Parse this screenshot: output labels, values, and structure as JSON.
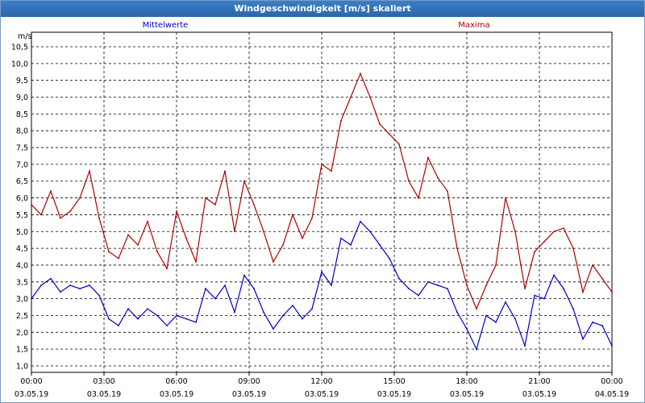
{
  "window": {
    "title": "Windgeschwindigkeit [m/s] skaliert"
  },
  "colors": {
    "mean": "#0000cc",
    "max": "#b00000",
    "grid": "#000000",
    "titlebar": "#2f6db0"
  },
  "chart_data": {
    "type": "line",
    "title": "Windgeschwindigkeit [m/s] skaliert",
    "ylabel": "m/s",
    "ylim": [
      0.8,
      10.7
    ],
    "yticks": [
      "10,5",
      "10,0",
      "9,5",
      "9,0",
      "8,5",
      "8,0",
      "7,5",
      "7,0",
      "6,5",
      "6,0",
      "5,5",
      "5,0",
      "4,5",
      "4,0",
      "3,5",
      "3,0",
      "2,5",
      "2,0",
      "1,5",
      "1,0"
    ],
    "xlim": [
      0,
      24
    ],
    "xticks": [
      {
        "time": "00:00",
        "date": "03.05.19"
      },
      {
        "time": "03:00",
        "date": "03.05.19"
      },
      {
        "time": "06:00",
        "date": "03.05.19"
      },
      {
        "time": "09:00",
        "date": "03.05.19"
      },
      {
        "time": "12:00",
        "date": "03.05.19"
      },
      {
        "time": "15:00",
        "date": "03.05.19"
      },
      {
        "time": "18:00",
        "date": "03.05.19"
      },
      {
        "time": "21:00",
        "date": "03.05.19"
      },
      {
        "time": "00:00",
        "date": "04.05.19"
      }
    ],
    "grid": true,
    "legend_position": "top",
    "x": [
      0,
      0.4,
      0.8,
      1.2,
      1.6,
      2.0,
      2.4,
      2.8,
      3.2,
      3.6,
      4.0,
      4.4,
      4.8,
      5.2,
      5.6,
      6.0,
      6.4,
      6.8,
      7.2,
      7.6,
      8.0,
      8.4,
      8.8,
      9.2,
      9.6,
      10.0,
      10.4,
      10.8,
      11.2,
      11.6,
      12.0,
      12.4,
      12.8,
      13.2,
      13.6,
      14.0,
      14.4,
      14.8,
      15.2,
      15.6,
      16.0,
      16.4,
      16.8,
      17.2,
      17.6,
      18.0,
      18.4,
      18.8,
      19.2,
      19.6,
      20.0,
      20.4,
      20.8,
      21.2,
      21.6,
      22.0,
      22.4,
      22.8,
      23.2,
      23.6,
      24.0
    ],
    "series": [
      {
        "name": "Mittelwerte",
        "color": "#0000cc",
        "values": [
          3.0,
          3.4,
          3.6,
          3.2,
          3.4,
          3.3,
          3.4,
          3.1,
          2.4,
          2.2,
          2.7,
          2.4,
          2.7,
          2.5,
          2.2,
          2.5,
          2.4,
          2.3,
          3.3,
          3.0,
          3.4,
          2.6,
          3.7,
          3.3,
          2.6,
          2.1,
          2.5,
          2.8,
          2.4,
          2.7,
          3.8,
          3.4,
          4.8,
          4.6,
          5.3,
          5.0,
          4.6,
          4.2,
          3.6,
          3.3,
          3.1,
          3.5,
          3.4,
          3.3,
          2.6,
          2.1,
          1.5,
          2.5,
          2.3,
          2.9,
          2.4,
          1.6,
          3.1,
          3.0,
          3.7,
          3.3,
          2.7,
          1.8,
          2.3,
          2.2,
          1.6
        ]
      },
      {
        "name": "Maxima",
        "color": "#b00000",
        "values": [
          5.8,
          5.5,
          6.2,
          5.4,
          5.6,
          6.0,
          6.8,
          5.4,
          4.4,
          4.2,
          4.9,
          4.6,
          5.3,
          4.4,
          3.9,
          5.6,
          4.8,
          4.1,
          6.0,
          5.8,
          6.8,
          5.0,
          6.5,
          5.8,
          5.0,
          4.1,
          4.6,
          5.5,
          4.8,
          5.4,
          7.0,
          6.8,
          8.3,
          9.0,
          9.7,
          9.0,
          8.2,
          7.9,
          7.6,
          6.5,
          6.0,
          7.2,
          6.6,
          6.2,
          4.5,
          3.4,
          2.7,
          3.4,
          4.0,
          6.0,
          5.0,
          3.3,
          4.4,
          4.7,
          5.0,
          5.1,
          4.5,
          3.2,
          4.0,
          3.6,
          3.2
        ]
      }
    ]
  }
}
